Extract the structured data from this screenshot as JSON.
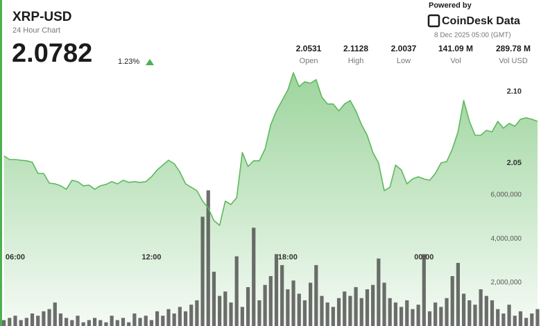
{
  "header": {
    "title": "XRP-USD",
    "subtitle": "24 Hour Chart",
    "price": "2.0782",
    "change": "1.23%",
    "stats": [
      {
        "value": "2.0531",
        "label": "Open"
      },
      {
        "value": "2.1128",
        "label": "High"
      },
      {
        "value": "2.0037",
        "label": "Low"
      },
      {
        "value": "141.09 M",
        "label": "Vol"
      },
      {
        "value": "289.78 M",
        "label": "Vol USD"
      }
    ],
    "powered_by": "Powered by",
    "brand": "CoinDesk Data",
    "date": "8 Dec 2025 05:00 (GMT)"
  },
  "chart_data": {
    "type": "line",
    "x": [
      "05:30",
      "05:45",
      "06:00",
      "06:15",
      "06:30",
      "06:45",
      "07:00",
      "07:15",
      "07:30",
      "07:45",
      "08:00",
      "08:15",
      "08:30",
      "08:45",
      "09:00",
      "09:15",
      "09:30",
      "09:45",
      "10:00",
      "10:15",
      "10:30",
      "10:45",
      "11:00",
      "11:15",
      "11:30",
      "11:45",
      "12:00",
      "12:15",
      "12:30",
      "12:45",
      "13:00",
      "13:15",
      "13:30",
      "13:45",
      "14:00",
      "14:15",
      "14:30",
      "14:45",
      "15:00",
      "15:15",
      "15:30",
      "15:45",
      "16:00",
      "16:15",
      "16:30",
      "16:45",
      "17:00",
      "17:15",
      "17:30",
      "17:45",
      "18:00",
      "18:15",
      "18:30",
      "18:45",
      "19:00",
      "19:15",
      "19:30",
      "19:45",
      "20:00",
      "20:15",
      "20:30",
      "20:45",
      "21:00",
      "21:15",
      "21:30",
      "21:45",
      "22:00",
      "22:15",
      "22:30",
      "22:45",
      "23:00",
      "23:15",
      "23:30",
      "23:45",
      "00:00",
      "00:15",
      "00:30",
      "00:45",
      "01:00",
      "01:15",
      "01:30",
      "01:45",
      "02:00",
      "02:15",
      "02:30",
      "02:45",
      "03:00",
      "03:15",
      "03:30",
      "03:45",
      "04:00",
      "04:15",
      "04:30",
      "04:45",
      "05:00"
    ],
    "xticks": [
      "06:00",
      "12:00",
      "18:00",
      "00:00"
    ],
    "series": [
      {
        "color": "#5cb85c",
        "values": [
          2.0549,
          2.0524,
          2.0524,
          2.0519,
          2.0515,
          2.0505,
          2.0427,
          2.0427,
          2.0359,
          2.0354,
          2.034,
          2.0316,
          2.0379,
          2.0369,
          2.034,
          2.0345,
          2.0316,
          2.034,
          2.035,
          2.0369,
          2.0354,
          2.0379,
          2.0364,
          2.0369,
          2.0364,
          2.0369,
          2.0403,
          2.0451,
          2.0485,
          2.0519,
          2.0495,
          2.0437,
          2.0354,
          2.033,
          2.0306,
          2.0233,
          2.0184,
          2.0097,
          2.0063,
          2.0233,
          2.0209,
          2.0257,
          2.0573,
          2.0476,
          2.0515,
          2.0515,
          2.0597,
          2.0767,
          2.0864,
          2.0937,
          2.101,
          2.1131,
          2.1034,
          2.1068,
          2.1058,
          2.1083,
          2.0961,
          2.0913,
          2.0913,
          2.0864,
          2.0913,
          2.0937,
          2.0864,
          2.0767,
          2.0694,
          2.0573,
          2.05,
          2.0306,
          2.033,
          2.0485,
          2.0451,
          2.0354,
          2.0388,
          2.0403,
          2.0388,
          2.0379,
          2.0427,
          2.05,
          2.051,
          2.0597,
          2.0718,
          2.0937,
          2.0791,
          2.0694,
          2.0694,
          2.0728,
          2.0718,
          2.0791,
          2.0743,
          2.0777,
          2.0757,
          2.0806,
          2.0816,
          2.0806,
          2.0791
        ]
      },
      {
        "color": "#4a4a4a",
        "axis": "y2",
        "values": [
          300000,
          400000,
          500000,
          300000,
          400000,
          600000,
          500000,
          700000,
          800000,
          1100000,
          600000,
          400000,
          300000,
          500000,
          200000,
          300000,
          400000,
          300000,
          200000,
          500000,
          300000,
          400000,
          200000,
          600000,
          400000,
          500000,
          300000,
          700000,
          500000,
          800000,
          600000,
          900000,
          700000,
          1000000,
          1200000,
          5000000,
          6200000,
          2500000,
          1400000,
          1600000,
          1100000,
          3200000,
          900000,
          1800000,
          4500000,
          1200000,
          1900000,
          2300000,
          3300000,
          2800000,
          1700000,
          2100000,
          1500000,
          1200000,
          2000000,
          2800000,
          1400000,
          1100000,
          900000,
          1300000,
          1600000,
          1400000,
          1800000,
          1300000,
          1700000,
          1900000,
          3100000,
          2000000,
          1300000,
          1100000,
          900000,
          1200000,
          800000,
          1000000,
          3300000,
          700000,
          1100000,
          900000,
          1300000,
          2300000,
          2900000,
          1500000,
          1200000,
          1000000,
          1700000,
          1400000,
          1200000,
          800000,
          600000,
          1000000,
          500000,
          700000,
          400000,
          600000,
          800000
        ]
      }
    ],
    "ylim": [
      1.9354,
      2.1155
    ],
    "yticks": [
      {
        "value": 2.1,
        "label": "2.10"
      },
      2.05
    ],
    "y2lim": [
      0,
      11700000
    ],
    "y2ticks": [
      {
        "value": 2000000,
        "label": "2,000,000"
      },
      {
        "value": 4000000,
        "label": "4,000,000"
      },
      {
        "value": 6000000,
        "label": "6,000,000"
      }
    ]
  }
}
